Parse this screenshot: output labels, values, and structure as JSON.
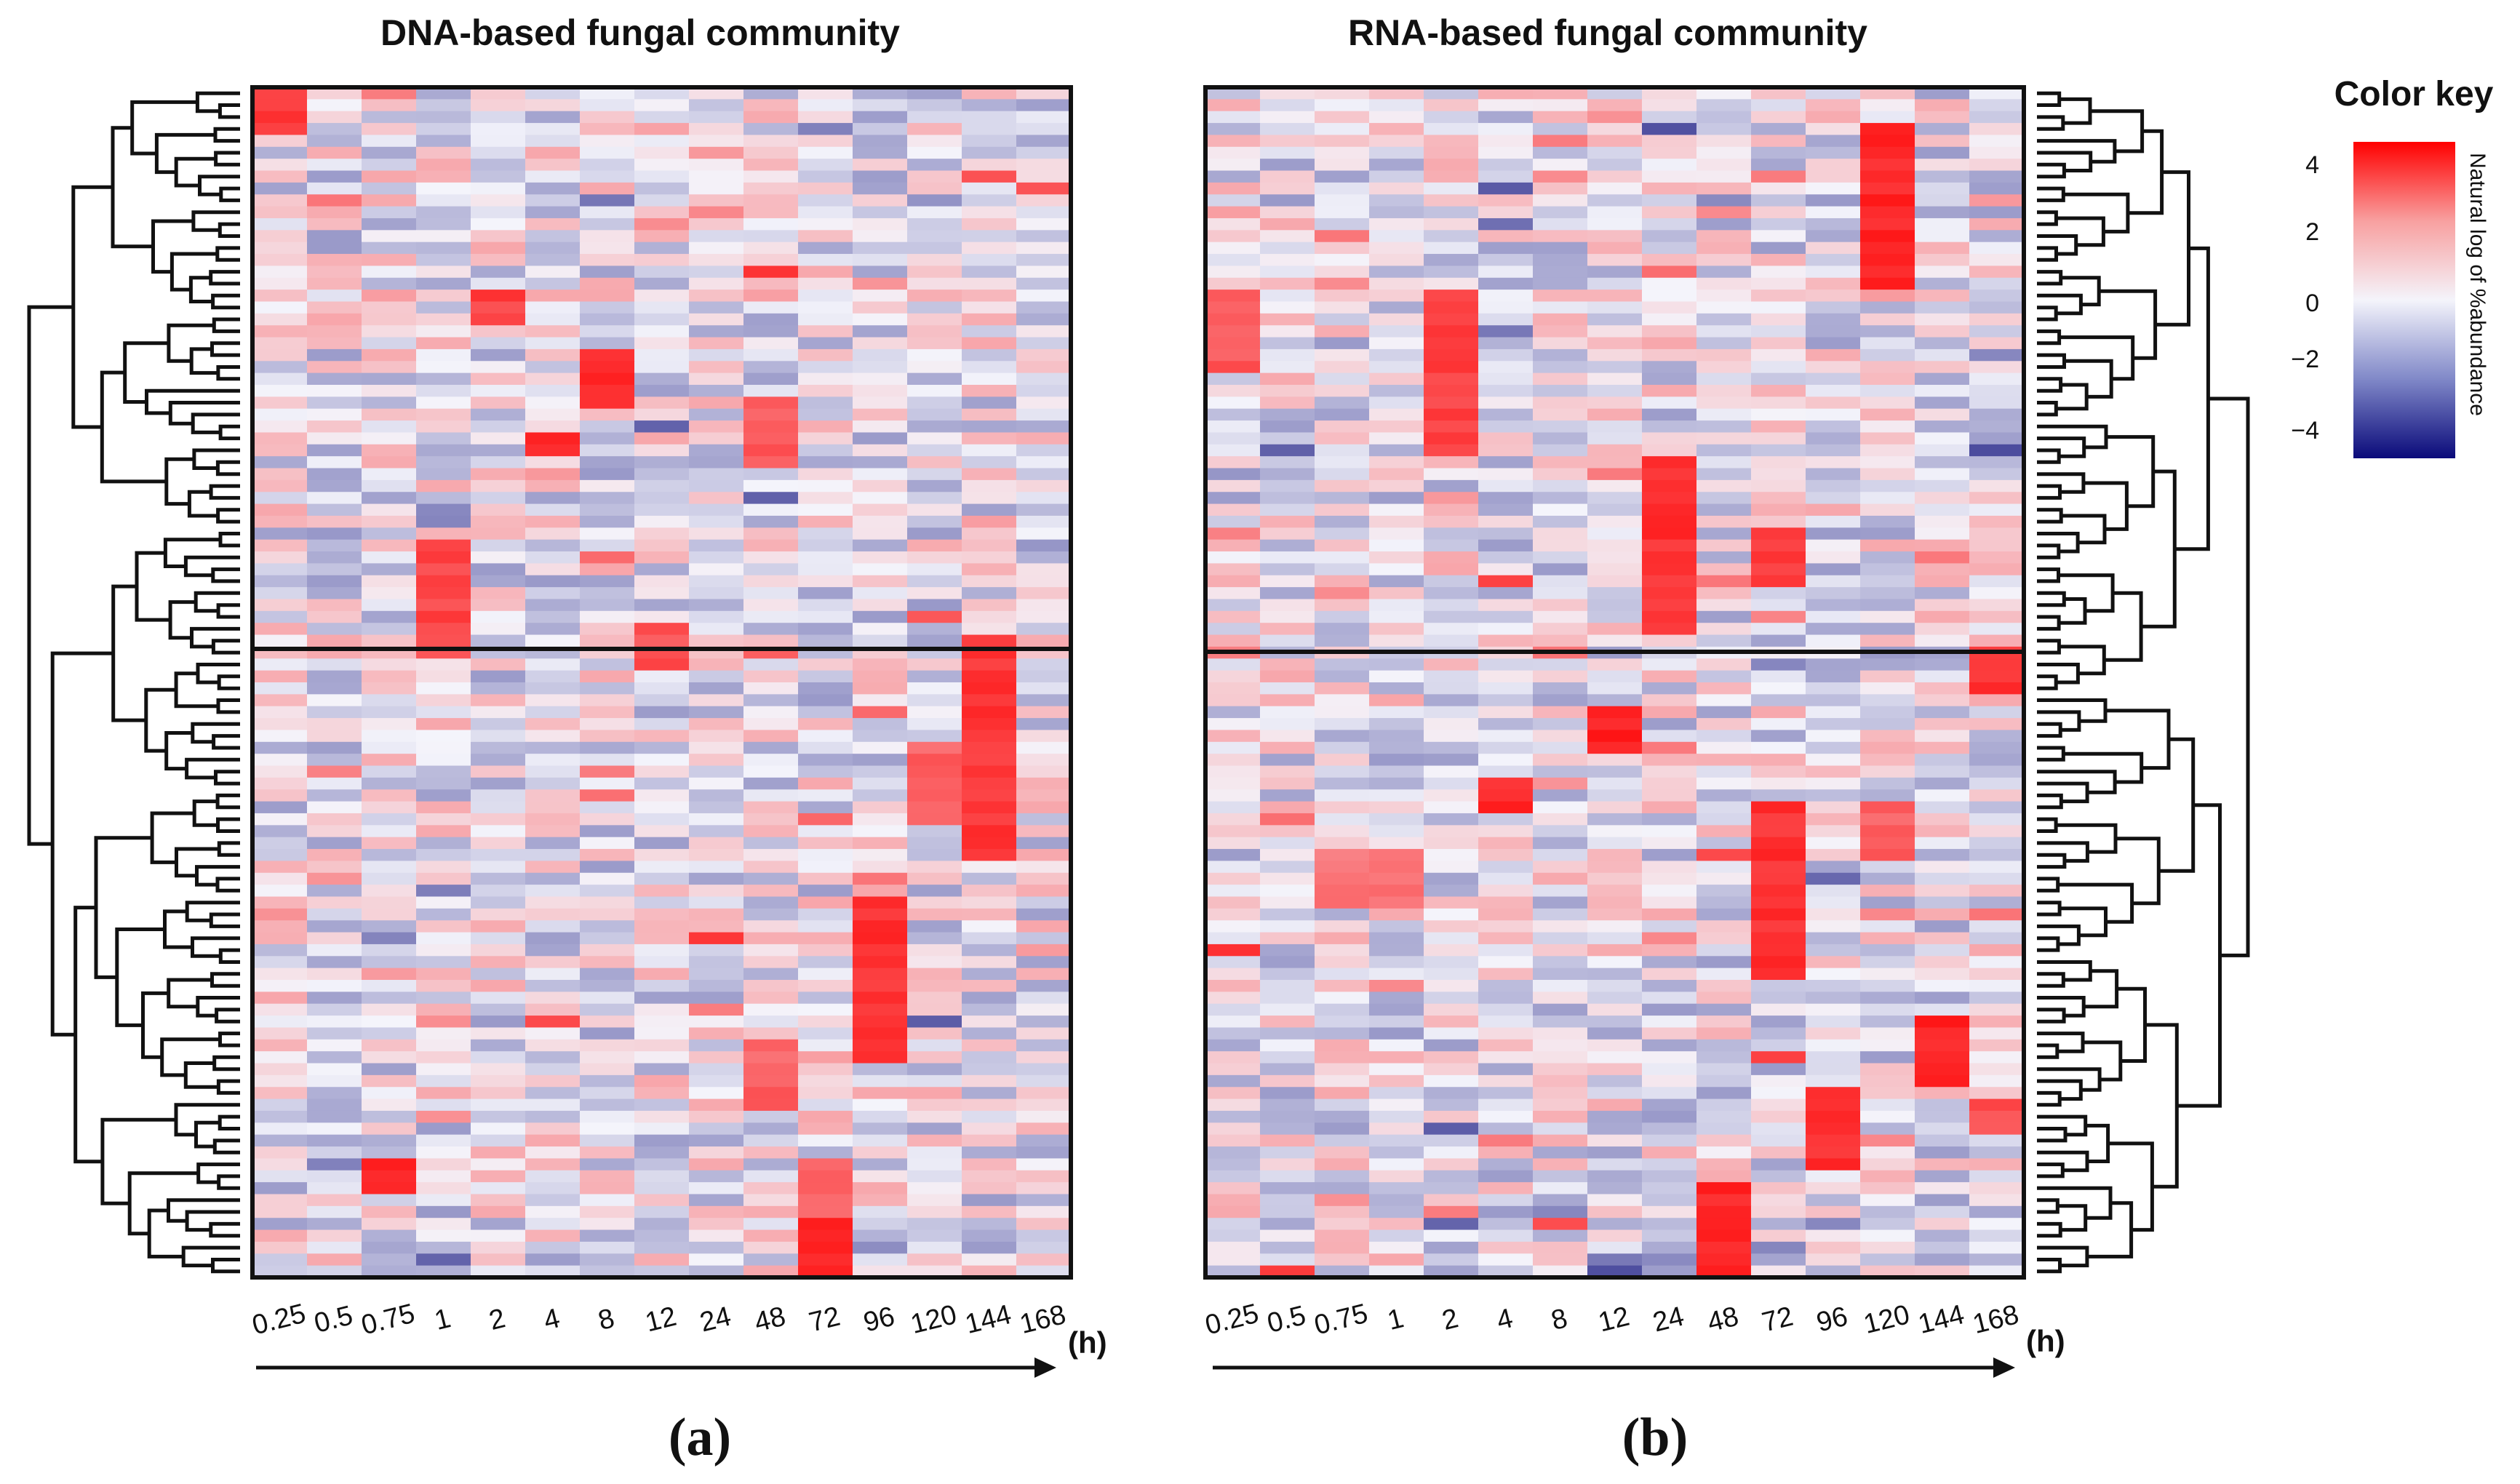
{
  "chart_data": [
    {
      "type": "heatmap",
      "panel": "(a)",
      "title": "DNA-based fungal community",
      "x_unit": "(h)",
      "x_categories": [
        "0.25",
        "0.5",
        "0.75",
        "1",
        "2",
        "4",
        "8",
        "12",
        "24",
        "48",
        "72",
        "96",
        "120",
        "144",
        "168"
      ],
      "row_groups": 2,
      "hotspots": [
        {
          "time": "0.25",
          "level": 3.8
        },
        {
          "time": "1",
          "level": 3.5
        },
        {
          "time": "2",
          "level": 3.6
        },
        {
          "time": "4",
          "level": 4.0
        },
        {
          "time": "8",
          "level": 4.0
        },
        {
          "time": "12",
          "level": 3.3
        },
        {
          "time": "48",
          "level": 3.2
        },
        {
          "time": "72",
          "level": 4.2
        },
        {
          "time": "96",
          "level": 3.9
        },
        {
          "time": "120",
          "level": 3.0
        },
        {
          "time": "144",
          "level": 3.8
        },
        {
          "time": "0.75",
          "level": 4.0
        }
      ]
    },
    {
      "type": "heatmap",
      "panel": "(b)",
      "title": "RNA-based fungal community",
      "x_unit": "(h)",
      "x_categories": [
        "0.25",
        "0.5",
        "0.75",
        "1",
        "2",
        "4",
        "8",
        "12",
        "24",
        "48",
        "72",
        "96",
        "120",
        "144",
        "168"
      ],
      "row_groups": 2,
      "hotspots": [
        {
          "time": "0.25",
          "level": 3.2
        },
        {
          "time": "2",
          "level": 3.6
        },
        {
          "time": "4",
          "level": 4.0
        },
        {
          "time": "12",
          "level": 4.2
        },
        {
          "time": "24",
          "level": 3.9
        },
        {
          "time": "48",
          "level": 4.1
        },
        {
          "time": "72",
          "level": 3.9
        },
        {
          "time": "96",
          "level": 4.0
        },
        {
          "time": "120",
          "level": 4.1
        },
        {
          "time": "144",
          "level": 4.2
        },
        {
          "time": "168",
          "level": 3.9
        }
      ]
    }
  ],
  "color_key": {
    "title": "Color key",
    "label": "Natural log of %abundance",
    "ticks": [
      "4",
      "2",
      "0",
      "−2",
      "−4"
    ],
    "range": [
      -4.5,
      4.5
    ],
    "colors": {
      "low": "#0a0a7a",
      "mid": "#f4f4fb",
      "high": "#ff0000"
    }
  }
}
